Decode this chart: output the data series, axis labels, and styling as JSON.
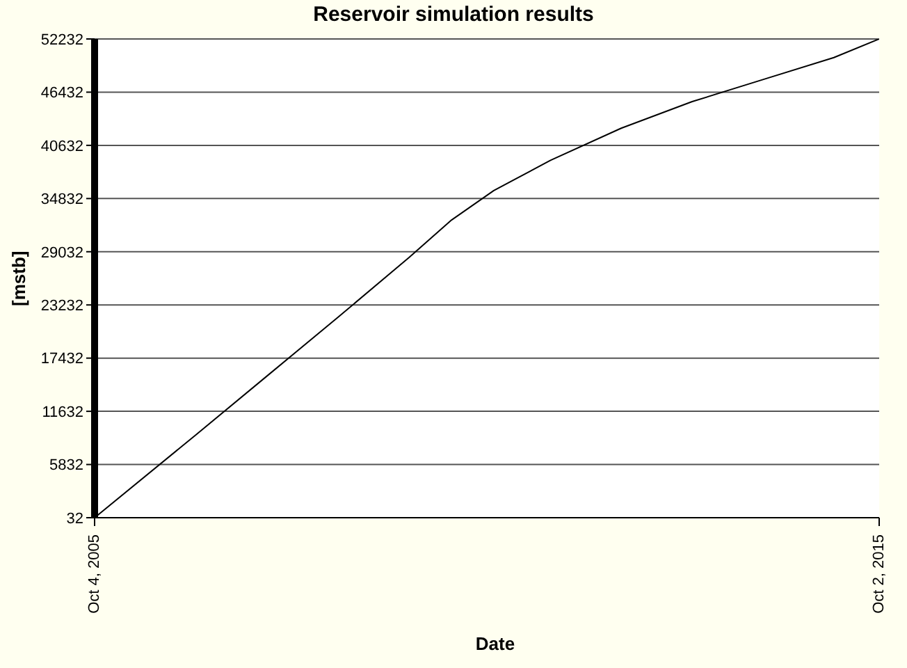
{
  "chart_data": {
    "type": "line",
    "title": "Reservoir simulation results",
    "xlabel": "Date",
    "ylabel": "[mstb]",
    "x": [
      "2005-10-04",
      "2007-01-20",
      "2007-12-16",
      "2008-11-10",
      "2009-10-06",
      "2010-04-22",
      "2010-11-04",
      "2011-07-26",
      "2012-06-19",
      "2013-05-15",
      "2014-04-09",
      "2015-03-05",
      "2015-10-02"
    ],
    "series": [
      {
        "color": "#000000",
        "values": [
          32,
          9100,
          15500,
          21900,
          28400,
          32500,
          35700,
          39000,
          42500,
          45400,
          47800,
          50200,
          52232
        ]
      }
    ],
    "xlim": [
      "2005-10-04",
      "2015-10-02"
    ],
    "xticks": [
      {
        "value": "2005-10-04",
        "label": "Oct 4, 2005"
      },
      {
        "value": "2015-10-02",
        "label": "Oct 2, 2015"
      }
    ],
    "ylim": [
      32,
      52232
    ],
    "yticks": [
      32,
      5832,
      11632,
      17432,
      23232,
      29032,
      34832,
      40632,
      46432,
      52232
    ],
    "grid": "y",
    "legend": false,
    "marker": "none",
    "line_style": "solid"
  }
}
